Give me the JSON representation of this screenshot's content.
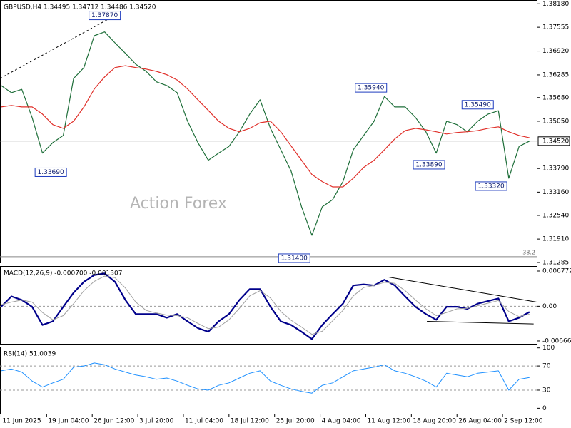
{
  "chart_data": [
    {
      "type": "line",
      "title": "GBPUSD,H4 1.34495 1.34712 1.34486 1.34520",
      "watermark": "Action Forex",
      "x": [
        0,
        10,
        20,
        30,
        40,
        50,
        60,
        70,
        80,
        90,
        100,
        110,
        120,
        130,
        140,
        150,
        160,
        170,
        180,
        190,
        200,
        210,
        220,
        230,
        240,
        250,
        260,
        270,
        280,
        290,
        300,
        310,
        320,
        330,
        340,
        350,
        360,
        370,
        380,
        390,
        400,
        410,
        420,
        430,
        440,
        450,
        460,
        470,
        480,
        490,
        500,
        510
      ],
      "series": [
        {
          "color": "#1f6f3a",
          "values": [
            1.36,
            1.3581,
            1.359,
            1.3515,
            1.342,
            1.3448,
            1.3467,
            1.3619,
            1.3648,
            1.3733,
            1.3743,
            1.3714,
            1.3686,
            1.3657,
            1.3638,
            1.361,
            1.36,
            1.3581,
            1.3505,
            1.3448,
            1.3401,
            1.342,
            1.3438,
            1.3477,
            1.3524,
            1.3562,
            1.3486,
            1.3429,
            1.3372,
            1.3277,
            1.3201,
            1.3277,
            1.3296,
            1.3344,
            1.3429,
            1.3467,
            1.3505,
            1.3571,
            1.3543,
            1.3543,
            1.3515,
            1.3477,
            1.342,
            1.3505,
            1.3496,
            1.3477,
            1.3505,
            1.3524,
            1.3533,
            1.3353,
            1.3438,
            1.3452
          ]
        },
        {
          "color": "#e0302a",
          "values": [
            1.3543,
            1.3547,
            1.3543,
            1.3543,
            1.3524,
            1.3496,
            1.3486,
            1.3505,
            1.3543,
            1.3591,
            1.3623,
            1.3648,
            1.3653,
            1.3648,
            1.3644,
            1.3638,
            1.3629,
            1.3615,
            1.3591,
            1.3562,
            1.3534,
            1.3505,
            1.3486,
            1.3477,
            1.3486,
            1.3501,
            1.3505,
            1.3477,
            1.3439,
            1.3401,
            1.3363,
            1.3344,
            1.333,
            1.333,
            1.3353,
            1.3382,
            1.3401,
            1.3429,
            1.3458,
            1.348,
            1.3486,
            1.3482,
            1.3477,
            1.3471,
            1.3475,
            1.3477,
            1.348,
            1.3486,
            1.349,
            1.3477,
            1.3467,
            1.3461
          ]
        }
      ],
      "xlim": [
        -1,
        517
      ],
      "ylim": [
        1.31285,
        1.3828
      ],
      "yticks": [
        {
          "value": 1.3818,
          "label": "1.38180"
        },
        {
          "value": 1.37555,
          "label": "1.37555"
        },
        {
          "value": 1.3692,
          "label": "1.36920"
        },
        {
          "value": 1.36285,
          "label": "1.36285"
        },
        {
          "value": 1.3568,
          "label": "1.35680"
        },
        {
          "value": 1.3505,
          "label": "1.35050"
        },
        {
          "value": 1.3379,
          "label": "1.33790"
        },
        {
          "value": 1.3316,
          "label": "1.33160"
        },
        {
          "value": 1.3254,
          "label": "1.32540"
        },
        {
          "value": 1.3191,
          "label": "1.31910"
        },
        {
          "value": 1.31285,
          "label": "1.31285"
        }
      ],
      "last_price": {
        "value": 1.3452,
        "label": "1.34520"
      },
      "hlines": [
        {
          "y": 1.3144,
          "label": 38.2
        }
      ],
      "annotations": [
        {
          "x": 100,
          "value": 1.3787,
          "label": "1.37870"
        },
        {
          "x": 48,
          "value": 1.3369,
          "label": "1.33690"
        },
        {
          "x": 357,
          "value": 1.3594,
          "label": "1.35940"
        },
        {
          "x": 413,
          "value": 1.3389,
          "label": "1.33890"
        },
        {
          "x": 460,
          "value": 1.3549,
          "label": "1.35490"
        },
        {
          "x": 473,
          "value": 1.3332,
          "label": "1.33320"
        },
        {
          "x": 283,
          "value": 1.314,
          "label": "1.31400"
        }
      ],
      "trendlines": [
        {
          "x": [
            -1,
            112
          ],
          "y": [
            1.3619,
            1.379
          ]
        }
      ]
    },
    {
      "type": "line",
      "title": "MACD(12,26,9) -0.000700 -0.001307",
      "x": [
        0,
        10,
        20,
        30,
        40,
        50,
        60,
        70,
        80,
        90,
        100,
        110,
        120,
        130,
        140,
        150,
        160,
        170,
        180,
        190,
        200,
        210,
        220,
        230,
        240,
        250,
        260,
        270,
        280,
        290,
        300,
        310,
        320,
        330,
        340,
        350,
        360,
        370,
        380,
        390,
        400,
        410,
        420,
        430,
        440,
        450,
        460,
        470,
        480,
        490,
        500,
        510
      ],
      "series": [
        {
          "color": "#00008b",
          "width": 2.2,
          "values": [
            -0.0001,
            0.0019,
            0.0012,
            -0.0001,
            -0.0036,
            -0.0029,
            -0.0001,
            0.0026,
            0.0047,
            0.006,
            0.0063,
            0.0047,
            0.0012,
            -0.0015,
            -0.0015,
            -0.0015,
            -0.0022,
            -0.0015,
            -0.0029,
            -0.0042,
            -0.0049,
            -0.0029,
            -0.0015,
            0.0012,
            0.0033,
            0.0033,
            -0.0001,
            -0.0029,
            -0.0036,
            -0.0049,
            -0.0063,
            -0.0036,
            -0.0015,
            0.0005,
            0.004,
            0.0042,
            0.004,
            0.0051,
            0.004,
            0.0019,
            -0.0001,
            -0.0015,
            -0.0026,
            -0.0001,
            -0.0001,
            -0.0005,
            0.0005,
            0.001,
            0.0015,
            -0.0029,
            -0.0022,
            -0.0011
          ]
        },
        {
          "color": "#a0a0a0",
          "width": 1,
          "values": [
            0.0003,
            0.0008,
            0.0012,
            0.0008,
            -0.0012,
            -0.0026,
            -0.0018,
            0.0005,
            0.003,
            0.0048,
            0.0058,
            0.0055,
            0.0035,
            0.0008,
            -0.0008,
            -0.0013,
            -0.0017,
            -0.0018,
            -0.0022,
            -0.0033,
            -0.0043,
            -0.004,
            -0.0026,
            -0.0004,
            0.002,
            0.003,
            0.0016,
            -0.001,
            -0.0027,
            -0.004,
            -0.0054,
            -0.0048,
            -0.0028,
            -0.0008,
            0.002,
            0.0036,
            0.004,
            0.0046,
            0.0044,
            0.003,
            0.0012,
            -0.0005,
            -0.0018,
            -0.0012,
            -0.0005,
            -0.0004,
            0.0001,
            0.0006,
            0.0011,
            -0.001,
            -0.002,
            -0.0015
          ]
        }
      ],
      "xlim": [
        -1,
        517
      ],
      "ylim": [
        -0.00722,
        0.00773
      ],
      "yticks": [
        0.006772,
        {
          "value": 0,
          "label": "0.00"
        },
        -0.006667
      ],
      "levels": [
        0
      ],
      "trendlines": [
        {
          "x": [
            374,
            517
          ],
          "y": [
            0.0056,
            0.0008
          ]
        },
        {
          "x": [
            411,
            514
          ],
          "y": [
            -0.0029,
            -0.0034
          ]
        }
      ]
    },
    {
      "type": "line",
      "title": "RSI(14) 51.0039",
      "x": [
        0,
        10,
        20,
        30,
        40,
        50,
        60,
        70,
        80,
        90,
        100,
        110,
        120,
        130,
        140,
        150,
        160,
        170,
        180,
        190,
        200,
        210,
        220,
        230,
        240,
        250,
        260,
        270,
        280,
        290,
        300,
        310,
        320,
        330,
        340,
        350,
        360,
        370,
        380,
        390,
        400,
        410,
        420,
        430,
        440,
        450,
        460,
        470,
        480,
        490,
        500,
        510
      ],
      "series": [
        {
          "color": "#1e90ff",
          "width": 1,
          "values": [
            62,
            65,
            60,
            45,
            35,
            42,
            48,
            68,
            70,
            75,
            72,
            65,
            60,
            55,
            52,
            48,
            50,
            45,
            38,
            32,
            30,
            38,
            42,
            50,
            58,
            62,
            45,
            38,
            32,
            28,
            25,
            38,
            42,
            52,
            62,
            65,
            68,
            72,
            62,
            58,
            52,
            45,
            35,
            58,
            55,
            52,
            58,
            60,
            62,
            30,
            48,
            51
          ]
        }
      ],
      "xlim": [
        -1,
        517
      ],
      "ylim": [
        -9,
        102
      ],
      "yticks": [
        100,
        70,
        30,
        0
      ],
      "levels": [
        70,
        30
      ],
      "xticks": [
        {
          "value": 0,
          "label": "11 Jun 2025"
        },
        {
          "value": 44,
          "label": "19 Jun 04:00"
        },
        {
          "value": 88,
          "label": "26 Jun 12:00"
        },
        {
          "value": 132,
          "label": "3 Jul 20:00"
        },
        {
          "value": 176,
          "label": "11 Jul 04:00"
        },
        {
          "value": 220,
          "label": "18 Jul 12:00"
        },
        {
          "value": 264,
          "label": "25 Jul 20:00"
        },
        {
          "value": 308,
          "label": "4 Aug 04:00"
        },
        {
          "value": 352,
          "label": "11 Aug 12:00"
        },
        {
          "value": 396,
          "label": "18 Aug 20:00"
        },
        {
          "value": 440,
          "label": "26 Aug 04:00"
        },
        {
          "value": 484,
          "label": "2 Sep 12:00"
        }
      ]
    }
  ]
}
